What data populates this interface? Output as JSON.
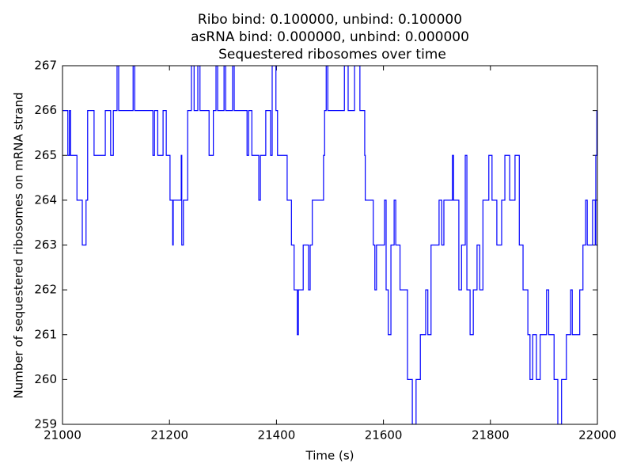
{
  "chart_data": {
    "type": "line",
    "drawstyle": "steps-post",
    "title": [
      "Ribo bind: 0.100000, unbind: 0.100000",
      "asRNA bind: 0.000000, unbind: 0.000000",
      "Sequestered ribosomes over time"
    ],
    "xlabel": "Time (s)",
    "ylabel": "Number of sequestered ribosomes on mRNA strand",
    "xlim": [
      21000,
      22000
    ],
    "ylim": [
      259,
      267
    ],
    "xticks": [
      21000,
      21200,
      21400,
      21600,
      21800,
      22000
    ],
    "yticks": [
      259,
      260,
      261,
      262,
      263,
      264,
      265,
      266,
      267
    ],
    "grid": false,
    "series": [
      {
        "name": "Sequestered ribosomes",
        "color": "#0000ff",
        "x": [
          21001,
          21010,
          21013,
          21015,
          21027,
          21037,
          21044,
          21047,
          21059,
          21080,
          21090,
          21095,
          21102,
          21105,
          21132,
          21135,
          21169,
          21172,
          21178,
          21188,
          21194,
          21201,
          21206,
          21207,
          21222,
          21223,
          21226,
          21234,
          21241,
          21246,
          21253,
          21257,
          21274,
          21282,
          21287,
          21290,
          21302,
          21305,
          21318,
          21321,
          21345,
          21348,
          21354,
          21367,
          21370,
          21380,
          21389,
          21392,
          21399,
          21402,
          21420,
          21428,
          21433,
          21439,
          21441,
          21450,
          21460,
          21463,
          21467,
          21488,
          21490,
          21493,
          21496,
          21527,
          21534,
          21546,
          21556,
          21565,
          21566,
          21581,
          21584,
          21587,
          21602,
          21605,
          21609,
          21614,
          21620,
          21623,
          21631,
          21645,
          21654,
          21661,
          21669,
          21679,
          21683,
          21689,
          21704,
          21709,
          21713,
          21729,
          21731,
          21741,
          21746,
          21753,
          21756,
          21762,
          21768,
          21775,
          21780,
          21786,
          21797,
          21803,
          21812,
          21821,
          21827,
          21836,
          21846,
          21854,
          21861,
          21870,
          21874,
          21879,
          21886,
          21893,
          21905,
          21909,
          21919,
          21926,
          21933,
          21942,
          21950,
          21953,
          21967,
          21973,
          21978,
          21981,
          21991,
          21996,
          21997,
          21999
        ],
        "values": [
          266,
          265,
          266,
          265,
          264,
          263,
          264,
          266,
          265,
          266,
          265,
          266,
          267,
          266,
          267,
          266,
          265,
          266,
          265,
          266,
          265,
          264,
          263,
          264,
          265,
          263,
          264,
          266,
          267,
          266,
          267,
          266,
          265,
          266,
          267,
          266,
          267,
          266,
          267,
          266,
          265,
          266,
          265,
          264,
          265,
          266,
          265,
          267,
          266,
          265,
          264,
          263,
          262,
          261,
          262,
          263,
          262,
          263,
          264,
          265,
          266,
          267,
          266,
          267,
          266,
          267,
          266,
          265,
          264,
          263,
          262,
          263,
          264,
          262,
          261,
          263,
          264,
          263,
          262,
          260,
          259,
          260,
          261,
          262,
          261,
          263,
          264,
          263,
          264,
          265,
          264,
          262,
          263,
          265,
          262,
          261,
          262,
          263,
          262,
          264,
          265,
          264,
          263,
          264,
          265,
          264,
          265,
          263,
          262,
          261,
          260,
          261,
          260,
          261,
          262,
          261,
          260,
          259,
          260,
          261,
          262,
          261,
          262,
          263,
          264,
          263,
          264,
          263,
          265,
          266
        ]
      }
    ]
  }
}
